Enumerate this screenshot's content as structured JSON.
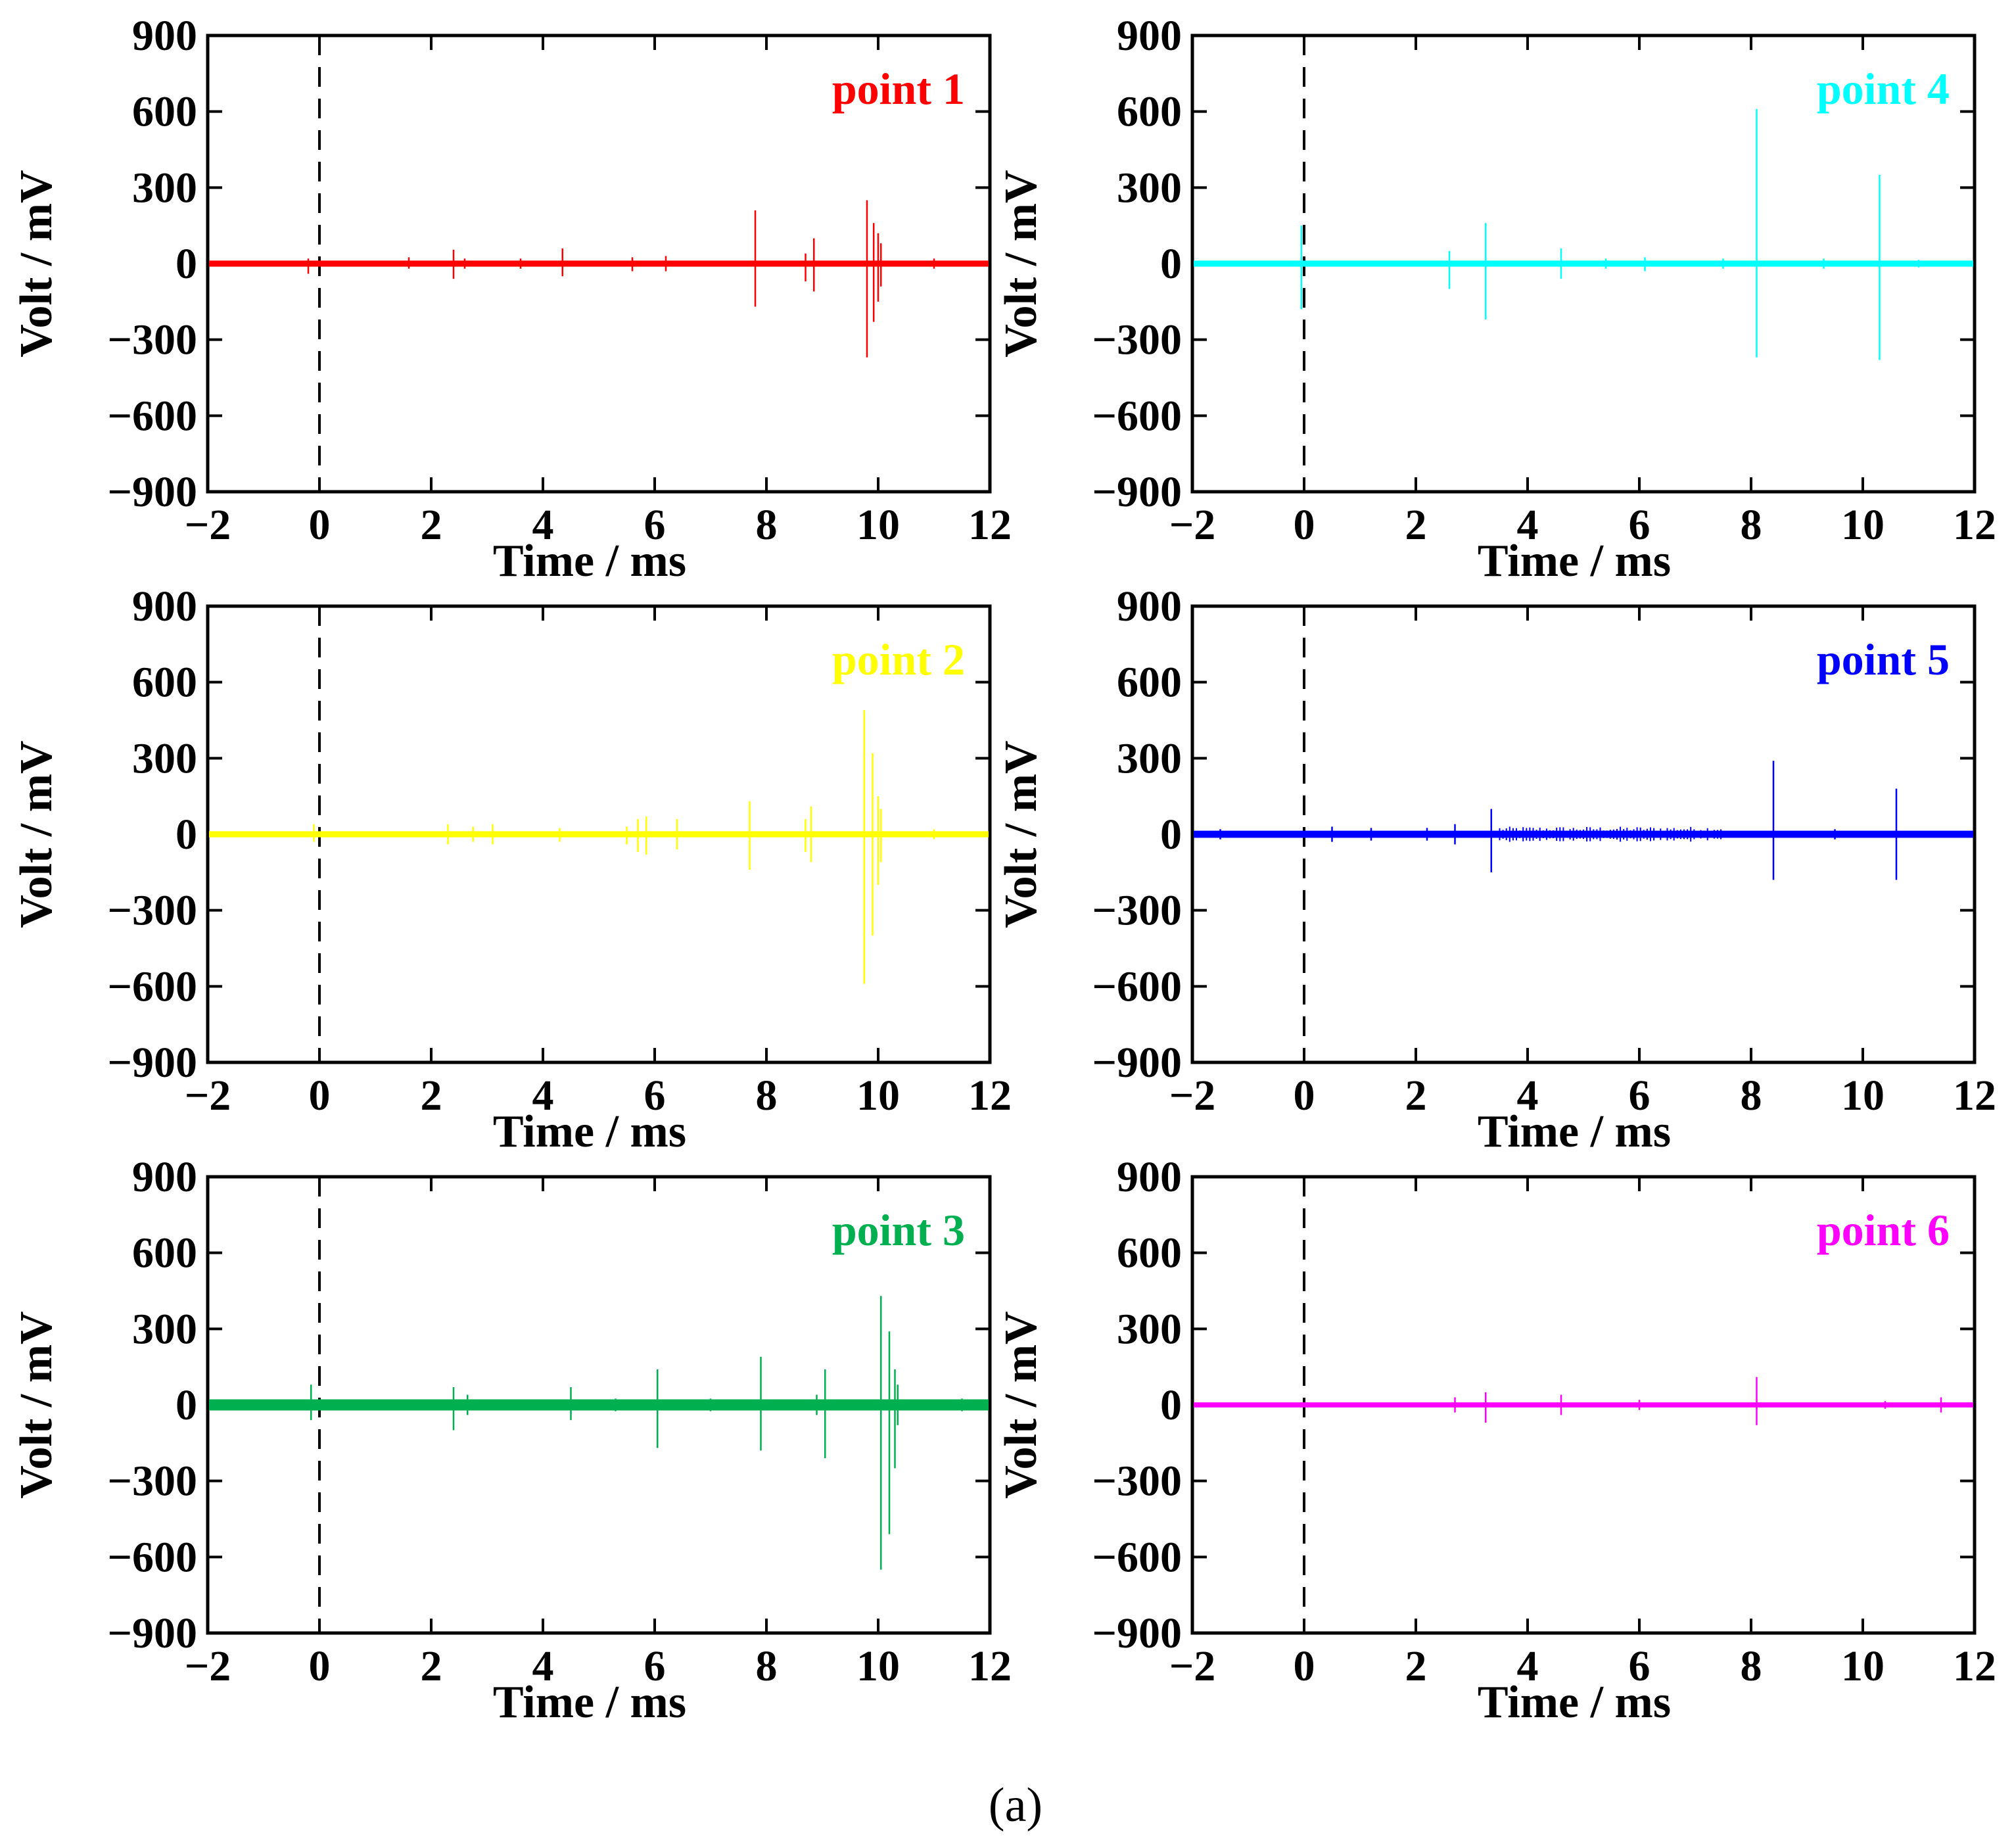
{
  "figure": {
    "caption": "(a)"
  },
  "chart_data": [
    {
      "type": "line",
      "title": "point 1",
      "color": "#ff0000",
      "xlabel": "Time / ms",
      "ylabel": "Volt / mV",
      "xlim": [
        -2,
        12
      ],
      "ylim": [
        -900,
        900
      ],
      "xticks": [
        "−2",
        "0",
        "2",
        "4",
        "6",
        "8",
        "10",
        "12"
      ],
      "yticks": [
        "900",
        "600",
        "300",
        "0",
        "−300",
        "−600",
        "−900"
      ],
      "trigger_line_x": 0,
      "baseline_noise": 12,
      "spikes": [
        [
          -0.2,
          20,
          -40
        ],
        [
          1.6,
          25,
          -20
        ],
        [
          2.4,
          55,
          -60
        ],
        [
          2.6,
          20,
          -20
        ],
        [
          3.6,
          20,
          -20
        ],
        [
          4.35,
          60,
          -50
        ],
        [
          5.6,
          25,
          -30
        ],
        [
          6.2,
          30,
          -30
        ],
        [
          7.8,
          210,
          -170
        ],
        [
          8.7,
          40,
          -70
        ],
        [
          8.85,
          100,
          -110
        ],
        [
          9.8,
          250,
          -370
        ],
        [
          9.92,
          160,
          -230
        ],
        [
          10.0,
          120,
          -150
        ],
        [
          10.05,
          80,
          -90
        ],
        [
          11.0,
          20,
          -20
        ]
      ]
    },
    {
      "type": "line",
      "title": "point 4",
      "color": "#00ffff",
      "xlabel": "Time / ms",
      "ylabel": "Volt / mV",
      "xlim": [
        -2,
        12
      ],
      "ylim": [
        -900,
        900
      ],
      "xticks": [
        "−2",
        "0",
        "2",
        "4",
        "6",
        "8",
        "10",
        "12"
      ],
      "yticks": [
        "900",
        "600",
        "300",
        "0",
        "−300",
        "−600",
        "−900"
      ],
      "trigger_line_x": 0,
      "baseline_noise": 12,
      "spikes": [
        [
          -0.05,
          150,
          -180
        ],
        [
          2.6,
          50,
          -100
        ],
        [
          3.25,
          160,
          -220
        ],
        [
          4.6,
          60,
          -60
        ],
        [
          5.4,
          20,
          -20
        ],
        [
          6.1,
          25,
          -30
        ],
        [
          7.5,
          20,
          -20
        ],
        [
          8.1,
          610,
          -370
        ],
        [
          9.3,
          20,
          -20
        ],
        [
          10.3,
          350,
          -380
        ],
        [
          11.0,
          15,
          -15
        ]
      ]
    },
    {
      "type": "line",
      "title": "point 2",
      "color": "#ffff00",
      "xlabel": "Time / ms",
      "ylabel": "Volt / mV",
      "xlim": [
        -2,
        12
      ],
      "ylim": [
        -900,
        900
      ],
      "xticks": [
        "−2",
        "0",
        "2",
        "4",
        "6",
        "8",
        "10",
        "12"
      ],
      "yticks": [
        "900",
        "600",
        "300",
        "0",
        "−300",
        "−600",
        "−900"
      ],
      "trigger_line_x": 0,
      "baseline_noise": 12,
      "spikes": [
        [
          -0.1,
          40,
          -30
        ],
        [
          2.3,
          40,
          -40
        ],
        [
          2.75,
          30,
          -30
        ],
        [
          3.1,
          40,
          -40
        ],
        [
          4.3,
          25,
          -30
        ],
        [
          5.5,
          30,
          -40
        ],
        [
          5.7,
          60,
          -70
        ],
        [
          5.85,
          70,
          -80
        ],
        [
          6.4,
          60,
          -60
        ],
        [
          7.7,
          130,
          -140
        ],
        [
          8.7,
          60,
          -70
        ],
        [
          8.8,
          110,
          -110
        ],
        [
          9.75,
          490,
          -590
        ],
        [
          9.9,
          320,
          -400
        ],
        [
          10.0,
          150,
          -200
        ],
        [
          10.05,
          100,
          -110
        ],
        [
          11.0,
          20,
          -20
        ]
      ]
    },
    {
      "type": "line",
      "title": "point 5",
      "color": "#0000ff",
      "xlabel": "Time / ms",
      "ylabel": "Volt / mV",
      "xlim": [
        -2,
        12
      ],
      "ylim": [
        -900,
        900
      ],
      "xticks": [
        "−2",
        "0",
        "2",
        "4",
        "6",
        "8",
        "10",
        "12"
      ],
      "yticks": [
        "900",
        "600",
        "300",
        "0",
        "−300",
        "−600",
        "−900"
      ],
      "trigger_line_x": 0,
      "baseline_noise": 14,
      "dense_noise": {
        "from": 3.5,
        "to": 7.5,
        "amplitude": 30,
        "step": 0.06
      },
      "spikes": [
        [
          -1.5,
          20,
          -20
        ],
        [
          0.5,
          30,
          -30
        ],
        [
          1.2,
          25,
          -25
        ],
        [
          2.2,
          25,
          -25
        ],
        [
          2.7,
          40,
          -40
        ],
        [
          3.35,
          100,
          -150
        ],
        [
          8.4,
          290,
          -180
        ],
        [
          9.5,
          20,
          -20
        ],
        [
          10.6,
          180,
          -180
        ]
      ]
    },
    {
      "type": "line",
      "title": "point 3",
      "color": "#00b050",
      "xlabel": "Time / ms",
      "ylabel": "Volt / mV",
      "xlim": [
        -2,
        12
      ],
      "ylim": [
        -900,
        900
      ],
      "xticks": [
        "−2",
        "0",
        "2",
        "4",
        "6",
        "8",
        "10",
        "12"
      ],
      "yticks": [
        "900",
        "600",
        "300",
        "0",
        "−300",
        "−600",
        "−900"
      ],
      "trigger_line_x": 0,
      "baseline_noise": 22,
      "spikes": [
        [
          -0.6,
          20,
          -20
        ],
        [
          -0.15,
          80,
          -60
        ],
        [
          2.4,
          70,
          -100
        ],
        [
          2.65,
          40,
          -40
        ],
        [
          3.5,
          20,
          -20
        ],
        [
          4.5,
          70,
          -60
        ],
        [
          5.3,
          25,
          -25
        ],
        [
          6.05,
          140,
          -170
        ],
        [
          7.0,
          25,
          -25
        ],
        [
          7.9,
          190,
          -180
        ],
        [
          8.9,
          40,
          -40
        ],
        [
          9.05,
          140,
          -210
        ],
        [
          10.05,
          430,
          -650
        ],
        [
          10.2,
          290,
          -510
        ],
        [
          10.3,
          140,
          -250
        ],
        [
          10.35,
          80,
          -80
        ],
        [
          11.5,
          25,
          -25
        ]
      ]
    },
    {
      "type": "line",
      "title": "point 6",
      "color": "#ff00ff",
      "xlabel": "Time / ms",
      "ylabel": "Volt / mV",
      "xlim": [
        -2,
        12
      ],
      "ylim": [
        -900,
        900
      ],
      "xticks": [
        "−2",
        "0",
        "2",
        "4",
        "6",
        "8",
        "10",
        "12"
      ],
      "yticks": [
        "900",
        "600",
        "300",
        "0",
        "−300",
        "−600",
        "−900"
      ],
      "trigger_line_x": 0,
      "baseline_noise": 10,
      "spikes": [
        [
          2.7,
          30,
          -30
        ],
        [
          3.25,
          50,
          -70
        ],
        [
          4.6,
          40,
          -40
        ],
        [
          6.0,
          20,
          -20
        ],
        [
          8.1,
          110,
          -80
        ],
        [
          10.4,
          15,
          -15
        ],
        [
          11.4,
          30,
          -30
        ]
      ]
    }
  ]
}
